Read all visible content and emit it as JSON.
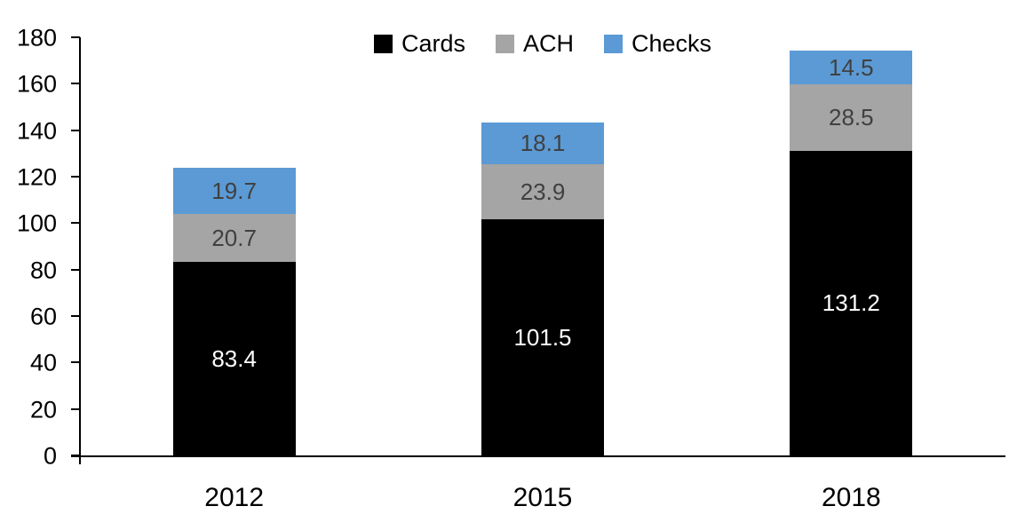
{
  "chart": {
    "background": "#FFFFFF",
    "axis_color": "#000000"
  },
  "chart_data": {
    "type": "bar",
    "stacked": true,
    "title": "",
    "xlabel": "",
    "ylabel": "",
    "categories": [
      "2012",
      "2015",
      "2018"
    ],
    "series": [
      {
        "name": "Cards",
        "color": "#000000",
        "label_color": "#FFFFFF",
        "values": [
          83.4,
          101.5,
          131.2
        ]
      },
      {
        "name": "ACH",
        "color": "#A5A5A5",
        "label_color": "#404040",
        "values": [
          20.7,
          23.9,
          28.5
        ]
      },
      {
        "name": "Checks",
        "color": "#5B9AD5",
        "label_color": "#404040",
        "values": [
          19.7,
          18.1,
          14.5
        ]
      }
    ],
    "totals": [
      123.8,
      143.5,
      174.2
    ],
    "ylim": [
      0,
      180
    ],
    "ytick_step": 20,
    "ytick_labels": [
      "0",
      "20",
      "40",
      "60",
      "80",
      "100",
      "120",
      "140",
      "160",
      "180"
    ],
    "legend_position": "top-center",
    "legend_entries": [
      "Cards",
      "ACH",
      "Checks"
    ],
    "grid": false
  }
}
